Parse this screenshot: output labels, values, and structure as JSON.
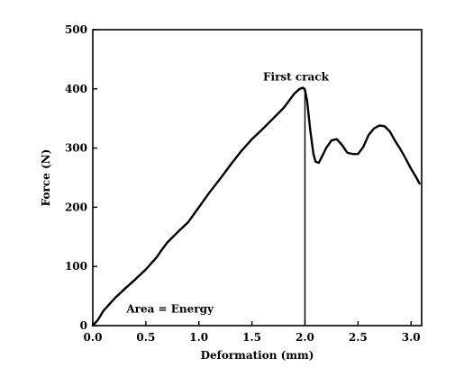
{
  "chart_data": {
    "type": "line",
    "title": "",
    "xlabel": "Deformation (mm)",
    "ylabel": "Force (N)",
    "xlim": [
      0,
      3.1
    ],
    "ylim": [
      0,
      500
    ],
    "xticks": [
      0.0,
      0.5,
      1.0,
      1.5,
      2.0,
      2.5,
      3.0
    ],
    "xtick_labels": [
      "0.0",
      "0.5",
      "1.0",
      "1.5",
      "2.0",
      "2.5",
      "3.0"
    ],
    "yticks": [
      0,
      100,
      200,
      300,
      400,
      500
    ],
    "ytick_labels": [
      "0",
      "100",
      "200",
      "300",
      "400",
      "500"
    ],
    "grid": false,
    "series": [
      {
        "x": [
          0,
          0.05,
          0.1,
          0.2,
          0.3,
          0.4,
          0.5,
          0.6,
          0.65,
          0.7,
          0.8,
          0.9,
          1.0,
          1.1,
          1.2,
          1.3,
          1.4,
          1.5,
          1.6,
          1.7,
          1.8,
          1.85,
          1.9,
          1.95,
          1.98,
          2.0,
          2.02,
          2.05,
          2.08,
          2.1,
          2.13,
          2.15,
          2.2,
          2.25,
          2.3,
          2.35,
          2.4,
          2.45,
          2.5,
          2.55,
          2.6,
          2.65,
          2.7,
          2.75,
          2.8,
          2.85,
          2.9,
          2.95,
          3.0,
          3.05,
          3.08
        ],
        "y": [
          0,
          10,
          25,
          45,
          62,
          78,
          95,
          115,
          128,
          140,
          158,
          175,
          200,
          225,
          248,
          272,
          295,
          315,
          332,
          350,
          368,
          380,
          392,
          400,
          402,
          398,
          380,
          330,
          290,
          277,
          275,
          282,
          300,
          313,
          315,
          305,
          292,
          290,
          290,
          302,
          322,
          333,
          338,
          337,
          328,
          312,
          298,
          282,
          265,
          250,
          240
        ]
      }
    ],
    "crack_x": 2.0,
    "annotations": [
      {
        "text": "First crack",
        "x": 2.0,
        "y": 420
      },
      {
        "text": "Area = Energy",
        "x": 0.3,
        "y": 25
      }
    ]
  }
}
